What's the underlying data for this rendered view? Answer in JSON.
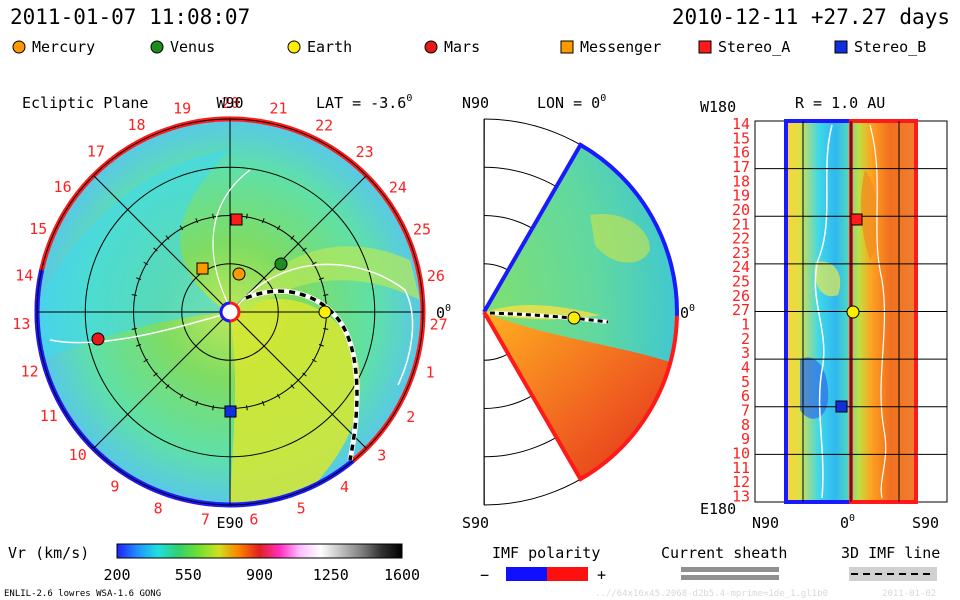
{
  "header": {
    "date_left": "2011-01-07 11:08:07",
    "date_right": "2010-12-11 +27.27 days"
  },
  "legend": [
    {
      "name": "Mercury",
      "shape": "circle",
      "color": "#ff9900"
    },
    {
      "name": "Venus",
      "shape": "circle",
      "color": "#1e8c1e"
    },
    {
      "name": "Earth",
      "shape": "circle",
      "color": "#ffee00"
    },
    {
      "name": "Mars",
      "shape": "circle",
      "color": "#e81818"
    },
    {
      "name": "Messenger",
      "shape": "square",
      "color": "#ff9900"
    },
    {
      "name": "Stereo_A",
      "shape": "square",
      "color": "#ff1a1a"
    },
    {
      "name": "Stereo_B",
      "shape": "square",
      "color": "#1030e0"
    }
  ],
  "ecliptic": {
    "title": "Ecliptic Plane",
    "top_label": "W90",
    "bottom_label": "E90",
    "right_label": "0",
    "right_sup": "0",
    "lat_label": "LAT = -3.6",
    "lat_sup": "0",
    "day_labels": [
      "1",
      "2",
      "3",
      "4",
      "5",
      "6",
      "7",
      "8",
      "9",
      "10",
      "11",
      "12",
      "13",
      "14",
      "15",
      "16",
      "17",
      "18",
      "19",
      "20",
      "21",
      "22",
      "23",
      "24",
      "25",
      "26",
      "27"
    ]
  },
  "meridional": {
    "top_label": "N90",
    "bottom_label": "S90",
    "right_label": "0",
    "right_sup": "0",
    "lon_label": "LON = 0",
    "lon_sup": "0"
  },
  "latlon": {
    "title": "R = 1.0 AU",
    "top_left_label": "W180",
    "bottom_left_label": "E180",
    "x_labels": [
      "N90",
      "0",
      "S90"
    ],
    "x_sup": "0",
    "y_labels": [
      "14",
      "15",
      "16",
      "17",
      "18",
      "19",
      "20",
      "21",
      "22",
      "23",
      "24",
      "25",
      "26",
      "27",
      "1",
      "2",
      "3",
      "4",
      "5",
      "6",
      "7",
      "8",
      "9",
      "10",
      "11",
      "12",
      "13"
    ]
  },
  "colorbar": {
    "label": "Vr (km/s)",
    "ticks": [
      "200",
      "550",
      "900",
      "1250",
      "1600"
    ],
    "range": [
      200,
      1600
    ],
    "stops": [
      "#2020ff",
      "#2090ff",
      "#20e0e0",
      "#30d070",
      "#70e030",
      "#d0e020",
      "#ff8000",
      "#e02020",
      "#ff30c0",
      "#ffc0ff",
      "#ffffff",
      "#c0c0c0",
      "#808080",
      "#303030",
      "#000000"
    ]
  },
  "imf": {
    "label": "IMF polarity",
    "minus": "−",
    "plus": "+",
    "neg_color": "#1010ff",
    "pos_color": "#ff1010"
  },
  "sheath": {
    "label": "Current sheath"
  },
  "imf3d": {
    "label": "3D IMF line"
  },
  "footer": {
    "model": "ENLIL-2.6 lowres WSA-1.6 GONG",
    "run_id": "..//64x16x45.2068-d2b5.4-mprime=1de_1.gl1b0",
    "run_date": "2011-01-02"
  }
}
